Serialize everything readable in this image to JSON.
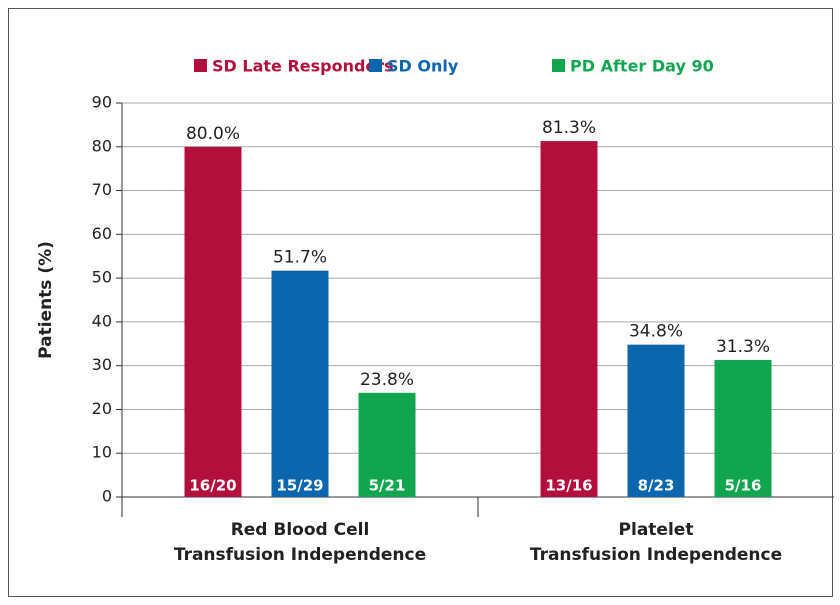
{
  "chart_data": {
    "type": "bar",
    "y_label": "Patients (%)",
    "categories": [
      [
        "Red Blood Cell",
        "Transfusion Independence"
      ],
      [
        "Platelet",
        "Transfusion Independence"
      ]
    ],
    "series": [
      {
        "name": "SD Late Responders",
        "color": "#b20f3c",
        "values": [
          80.0,
          81.3
        ],
        "value_labels": [
          "80.0%",
          "81.3%"
        ],
        "counts": [
          "16/20",
          "13/16"
        ]
      },
      {
        "name": "SD Only",
        "color": "#0b66ae",
        "values": [
          51.7,
          34.8
        ],
        "value_labels": [
          "51.7%",
          "34.8%"
        ],
        "counts": [
          "15/29",
          "8/23"
        ]
      },
      {
        "name": "PD After Day 90",
        "color": "#12a550",
        "values": [
          23.8,
          31.3
        ],
        "value_labels": [
          "23.8%",
          "31.3%"
        ],
        "counts": [
          "5/21",
          "5/16"
        ]
      }
    ],
    "ylim": [
      0,
      90
    ],
    "yticks": [
      0,
      10,
      20,
      30,
      40,
      50,
      60,
      70,
      80,
      90
    ],
    "grid": true
  }
}
